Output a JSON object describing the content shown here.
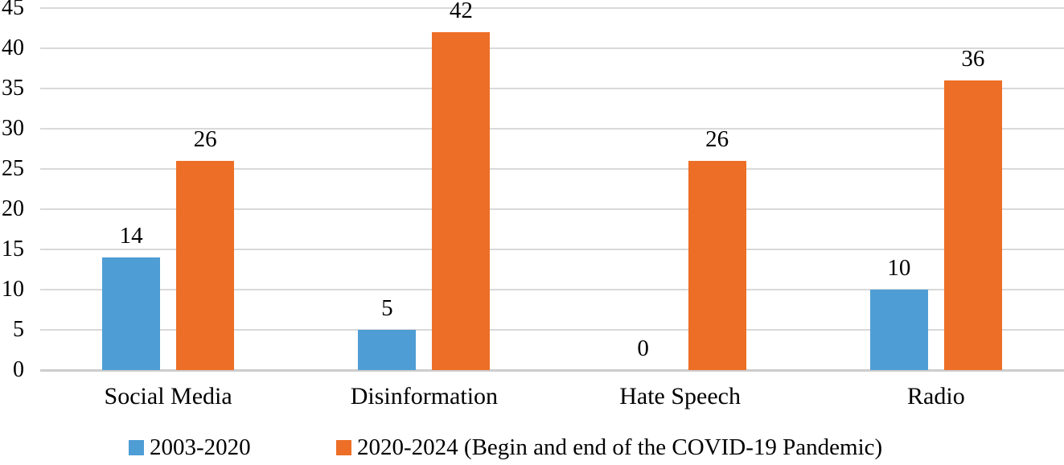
{
  "chart_data": {
    "type": "bar",
    "categories": [
      "Social Media",
      "Disinformation",
      "Hate Speech",
      "Radio"
    ],
    "series": [
      {
        "name": "2003-2020",
        "color": "#4f9dd5",
        "values": [
          14,
          5,
          0,
          10
        ]
      },
      {
        "name": "2020-2024 (Begin and end of the COVID-19 Pandemic)",
        "color": "#ed6e26",
        "values": [
          26,
          42,
          26,
          36
        ]
      }
    ],
    "data_labels": [
      [
        "14",
        "5",
        "0",
        "10"
      ],
      [
        "26",
        "42",
        "26",
        "36"
      ]
    ],
    "ylim": [
      0,
      45
    ],
    "yticks": [
      "0",
      "5",
      "10",
      "15",
      "20",
      "25",
      "30",
      "35",
      "40",
      "45"
    ],
    "grid": true,
    "gridline_color": "#d9d9d9",
    "baseline_color": "#cdcdcd",
    "legend_position": "bottom",
    "legend_entries": [
      "2003-2020",
      "2020-2024 (Begin and end of the COVID-19 Pandemic)"
    ]
  }
}
